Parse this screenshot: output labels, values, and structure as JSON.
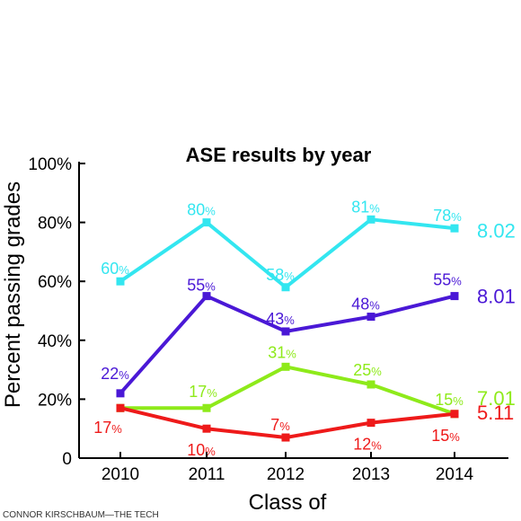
{
  "chart_data": {
    "type": "line",
    "title": "ASE results by year",
    "xlabel": "Class of",
    "ylabel": "Percent passing grades",
    "categories": [
      "2010",
      "2011",
      "2012",
      "2013",
      "2014"
    ],
    "ylim": [
      0,
      100
    ],
    "yticks": [
      0,
      20,
      40,
      60,
      80,
      100
    ],
    "ytick_labels": [
      "0",
      "20%",
      "40%",
      "60%",
      "80%",
      "100%"
    ],
    "grid": false,
    "credit": "CONNOR KIRSCHBAUM—THE TECH",
    "series": [
      {
        "name": "8.02",
        "color": "#33e6f0",
        "values": [
          60,
          80,
          58,
          81,
          78
        ],
        "labels": [
          "60",
          "80",
          "58",
          "81",
          "78"
        ]
      },
      {
        "name": "8.01",
        "color": "#4a18d6",
        "values": [
          22,
          55,
          43,
          48,
          55
        ],
        "labels": [
          "22",
          "55",
          "43",
          "48",
          "55"
        ]
      },
      {
        "name": "7.01",
        "color": "#8eea1a",
        "values": [
          17,
          17,
          31,
          25,
          15
        ],
        "labels": [
          "",
          "17",
          "31",
          "25",
          "15"
        ]
      },
      {
        "name": "5.11",
        "color": "#ee1a1a",
        "values": [
          17,
          10,
          7,
          12,
          15
        ],
        "labels": [
          "17",
          "10",
          "7",
          "12",
          "15"
        ]
      }
    ]
  }
}
